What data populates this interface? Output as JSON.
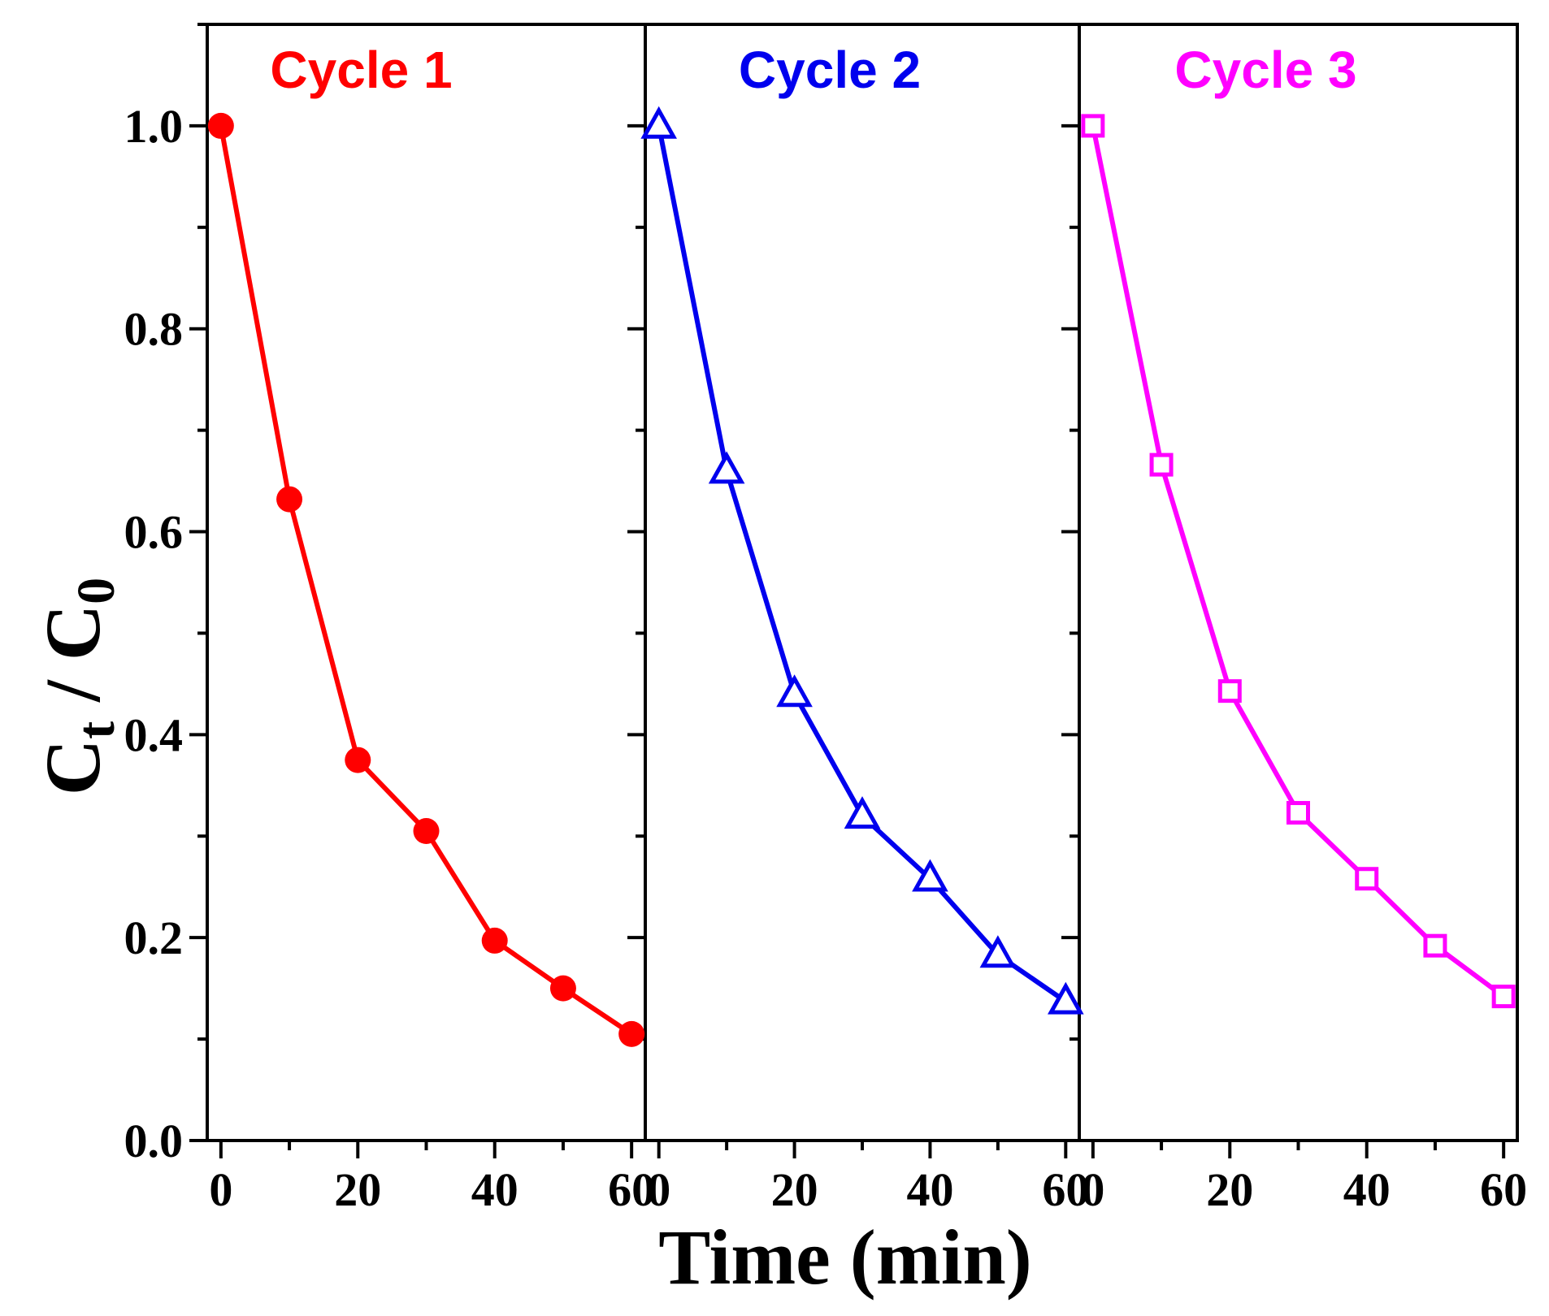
{
  "chart_data": {
    "type": "line",
    "ylabel": {
      "main": "C",
      "sub1": "t",
      "sep": " / C",
      "sub2": "0"
    },
    "xlabel": "Time (min)",
    "ylim": [
      0,
      1.1
    ],
    "yticks": [
      "0.0",
      "0.2",
      "0.4",
      "0.6",
      "0.8",
      "1.0"
    ],
    "xlim": [
      -2,
      62
    ],
    "xticks": [
      0,
      20,
      40,
      60
    ],
    "grid": false,
    "panels": [
      {
        "label": "Cycle 1",
        "color": "#ff0000",
        "marker": "filled-circle",
        "x": [
          0,
          10,
          20,
          30,
          40,
          50,
          60
        ],
        "y": [
          1.0,
          0.632,
          0.375,
          0.305,
          0.197,
          0.15,
          0.105
        ]
      },
      {
        "label": "Cycle 2",
        "color": "#0000ee",
        "marker": "open-triangle",
        "x": [
          0,
          10,
          20,
          30,
          40,
          50,
          60
        ],
        "y": [
          1.0,
          0.66,
          0.44,
          0.32,
          0.258,
          0.183,
          0.137
        ]
      },
      {
        "label": "Cycle 3",
        "color": "#ff00ff",
        "marker": "open-square",
        "x": [
          0,
          10,
          20,
          30,
          40,
          50,
          60
        ],
        "y": [
          1.0,
          0.666,
          0.443,
          0.323,
          0.258,
          0.192,
          0.142
        ]
      }
    ]
  }
}
